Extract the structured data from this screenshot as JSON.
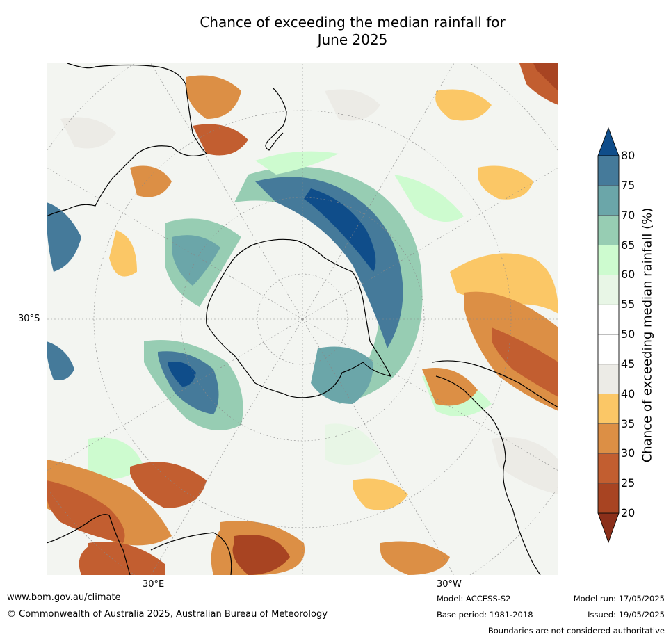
{
  "title_line1": "Chance of exceeding the median rainfall for",
  "title_line2": "June 2025",
  "lat_label": "30°S",
  "lon_labels": {
    "east": "30°E",
    "west": "30°W"
  },
  "colorbar": {
    "label": "Chance of exceeding median rainfall (%)",
    "ticks": [
      "20",
      "25",
      "30",
      "35",
      "40",
      "45",
      "50",
      "55",
      "60",
      "65",
      "70",
      "75",
      "80"
    ],
    "colors": [
      "#8b2f1a",
      "#a84422",
      "#c25e30",
      "#dc8f45",
      "#fbc766",
      "#ecebe6",
      "#ffffff",
      "#ffffff",
      "#e8f6e6",
      "#cdfbcf",
      "#97cdb3",
      "#6ba6a9",
      "#457a9a",
      "#0f4d8a"
    ]
  },
  "footer": {
    "website": "www.bom.gov.au/climate",
    "copyright": "© Commonwealth of Australia 2025, Australian Bureau of Meteorology",
    "model": "Model: ACCESS-S2",
    "base_period": "Base period: 1981-2018",
    "model_run": "Model run: 17/05/2025",
    "issued": "Issued: 19/05/2025",
    "disclaimer": "Boundaries are not considered authoritative"
  }
}
